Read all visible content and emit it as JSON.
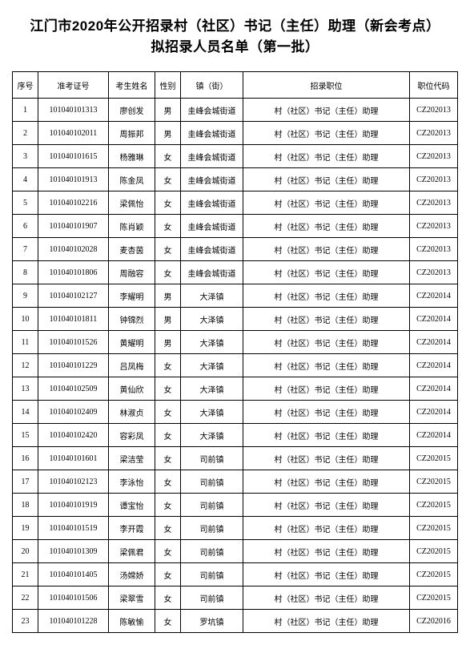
{
  "title_line1": "江门市2020年公开招录村（社区）书记（主任）助理（新会考点）",
  "title_line2": "拟招录人员名单（第一批）",
  "columns": [
    "序号",
    "准考证号",
    "考生姓名",
    "性别",
    "镇（街）",
    "招录职位",
    "职位代码"
  ],
  "rows": [
    {
      "seq": "1",
      "exam": "101040101313",
      "name": "廖创发",
      "sex": "男",
      "town": "圭峰会城街道",
      "pos": "村（社区）书记（主任）助理",
      "code": "CZ202013"
    },
    {
      "seq": "2",
      "exam": "101040102011",
      "name": "周振邦",
      "sex": "男",
      "town": "圭峰会城街道",
      "pos": "村（社区）书记（主任）助理",
      "code": "CZ202013"
    },
    {
      "seq": "3",
      "exam": "101040101615",
      "name": "杨雅琳",
      "sex": "女",
      "town": "圭峰会城街道",
      "pos": "村（社区）书记（主任）助理",
      "code": "CZ202013"
    },
    {
      "seq": "4",
      "exam": "101040101913",
      "name": "陈金凤",
      "sex": "女",
      "town": "圭峰会城街道",
      "pos": "村（社区）书记（主任）助理",
      "code": "CZ202013"
    },
    {
      "seq": "5",
      "exam": "101040102216",
      "name": "梁佩怡",
      "sex": "女",
      "town": "圭峰会城街道",
      "pos": "村（社区）书记（主任）助理",
      "code": "CZ202013"
    },
    {
      "seq": "6",
      "exam": "101040101907",
      "name": "陈肖颖",
      "sex": "女",
      "town": "圭峰会城街道",
      "pos": "村（社区）书记（主任）助理",
      "code": "CZ202013"
    },
    {
      "seq": "7",
      "exam": "101040102028",
      "name": "麦杏茵",
      "sex": "女",
      "town": "圭峰会城街道",
      "pos": "村（社区）书记（主任）助理",
      "code": "CZ202013"
    },
    {
      "seq": "8",
      "exam": "101040101806",
      "name": "周融容",
      "sex": "女",
      "town": "圭峰会城街道",
      "pos": "村（社区）书记（主任）助理",
      "code": "CZ202013"
    },
    {
      "seq": "9",
      "exam": "101040102127",
      "name": "李耀明",
      "sex": "男",
      "town": "大泽镇",
      "pos": "村（社区）书记（主任）助理",
      "code": "CZ202014"
    },
    {
      "seq": "10",
      "exam": "101040101811",
      "name": "钟锦烈",
      "sex": "男",
      "town": "大泽镇",
      "pos": "村（社区）书记（主任）助理",
      "code": "CZ202014"
    },
    {
      "seq": "11",
      "exam": "101040101526",
      "name": "黄耀明",
      "sex": "男",
      "town": "大泽镇",
      "pos": "村（社区）书记（主任）助理",
      "code": "CZ202014"
    },
    {
      "seq": "12",
      "exam": "101040101229",
      "name": "吕凤梅",
      "sex": "女",
      "town": "大泽镇",
      "pos": "村（社区）书记（主任）助理",
      "code": "CZ202014"
    },
    {
      "seq": "13",
      "exam": "101040102509",
      "name": "黄仙欣",
      "sex": "女",
      "town": "大泽镇",
      "pos": "村（社区）书记（主任）助理",
      "code": "CZ202014"
    },
    {
      "seq": "14",
      "exam": "101040102409",
      "name": "林淑贞",
      "sex": "女",
      "town": "大泽镇",
      "pos": "村（社区）书记（主任）助理",
      "code": "CZ202014"
    },
    {
      "seq": "15",
      "exam": "101040102420",
      "name": "容彩凤",
      "sex": "女",
      "town": "大泽镇",
      "pos": "村（社区）书记（主任）助理",
      "code": "CZ202014"
    },
    {
      "seq": "16",
      "exam": "101040101601",
      "name": "梁洁莹",
      "sex": "女",
      "town": "司前镇",
      "pos": "村（社区）书记（主任）助理",
      "code": "CZ202015"
    },
    {
      "seq": "17",
      "exam": "101040102123",
      "name": "李泳怡",
      "sex": "女",
      "town": "司前镇",
      "pos": "村（社区）书记（主任）助理",
      "code": "CZ202015"
    },
    {
      "seq": "18",
      "exam": "101040101919",
      "name": "谭宝怡",
      "sex": "女",
      "town": "司前镇",
      "pos": "村（社区）书记（主任）助理",
      "code": "CZ202015"
    },
    {
      "seq": "19",
      "exam": "101040101519",
      "name": "李开霞",
      "sex": "女",
      "town": "司前镇",
      "pos": "村（社区）书记（主任）助理",
      "code": "CZ202015"
    },
    {
      "seq": "20",
      "exam": "101040101309",
      "name": "梁佩君",
      "sex": "女",
      "town": "司前镇",
      "pos": "村（社区）书记（主任）助理",
      "code": "CZ202015"
    },
    {
      "seq": "21",
      "exam": "101040101405",
      "name": "汤嫦娇",
      "sex": "女",
      "town": "司前镇",
      "pos": "村（社区）书记（主任）助理",
      "code": "CZ202015"
    },
    {
      "seq": "22",
      "exam": "101040101506",
      "name": "梁翠雪",
      "sex": "女",
      "town": "司前镇",
      "pos": "村（社区）书记（主任）助理",
      "code": "CZ202015"
    },
    {
      "seq": "23",
      "exam": "101040101228",
      "name": "陈敏愉",
      "sex": "女",
      "town": "罗坑镇",
      "pos": "村（社区）书记（主任）助理",
      "code": "CZ202016"
    }
  ]
}
